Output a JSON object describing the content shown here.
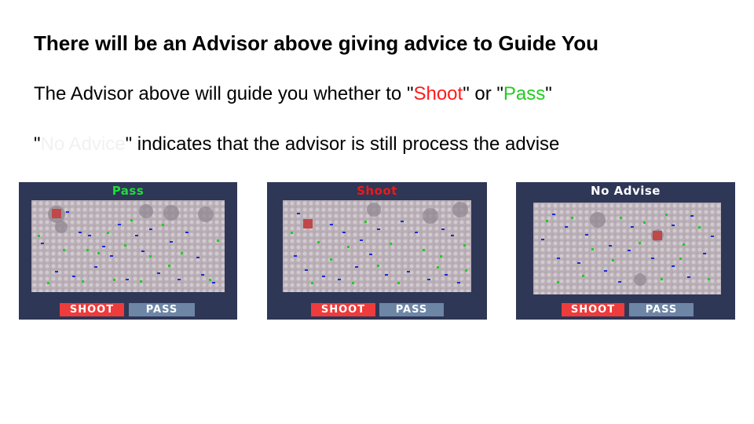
{
  "slide": {
    "title": "There will be an Advisor above giving advice to Guide You",
    "line1": {
      "prefix": "The Advisor above will guide you whether to \"",
      "shoot": "Shoot",
      "mid": "\" or \"",
      "pass": "Pass",
      "suffix": "\""
    },
    "line2": {
      "prefix": "\"",
      "no_advice": "No Advice",
      "suffix": "\" indicates that the advisor is still process the advise"
    }
  },
  "panels": [
    {
      "advice": "Pass",
      "shoot_label": "SHOOT",
      "pass_label": "PASS"
    },
    {
      "advice": "Shoot",
      "shoot_label": "SHOOT",
      "pass_label": "PASS"
    },
    {
      "advice": "No Advise",
      "shoot_label": "SHOOT",
      "pass_label": "PASS"
    }
  ],
  "colors": {
    "panel_bg": "#2f3756",
    "shoot": "#ee3b3b",
    "pass": "#6d86a6",
    "advice_pass": "#1edc3a",
    "advice_shoot": "#f01818"
  }
}
